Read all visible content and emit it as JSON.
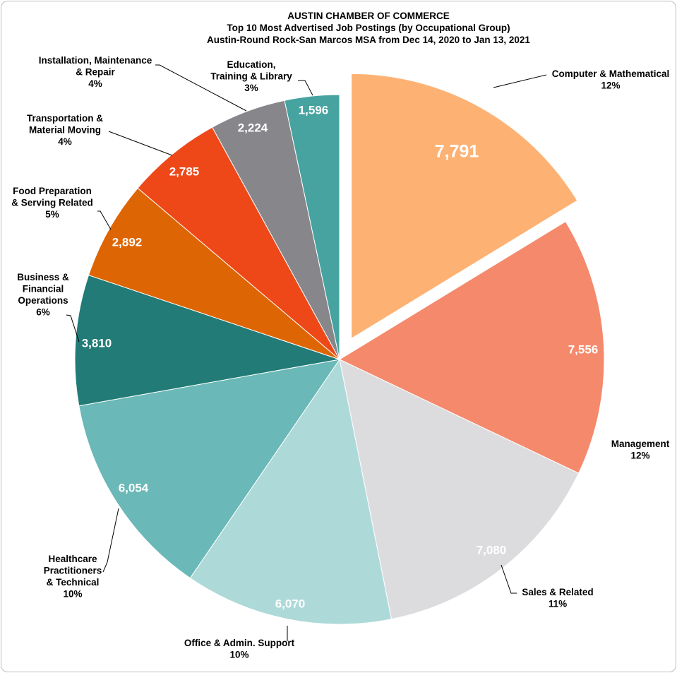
{
  "chart_data": {
    "type": "pie",
    "title": "AUSTIN CHAMBER OF COMMERCE",
    "subtitle": "Top 10 Most Advertised Job Postings (by Occupational Group)",
    "subtitle2": "Austin-Round Rock-San Marcos MSA from Dec 14, 2020 to Jan 13, 2021",
    "exploded_slice": "Computer & Mathematical",
    "slices": [
      {
        "label": "Computer & Mathematical",
        "value": 7791,
        "value_label": "7,791",
        "percent": "12%",
        "color": "#FDB274"
      },
      {
        "label": "Management",
        "value": 7556,
        "value_label": "7,556",
        "percent": "12%",
        "color": "#F5896C"
      },
      {
        "label": "Sales & Related",
        "value": 7080,
        "value_label": "7,080",
        "percent": "11%",
        "color": "#DCDCDE"
      },
      {
        "label": "Office & Admin.  Support",
        "value": 6070,
        "value_label": "6,070",
        "percent": "10%",
        "color": "#ADD9D8"
      },
      {
        "label": "Healthcare Practitioners & Technical",
        "value": 6054,
        "value_label": "6,054",
        "percent": "10%",
        "color": "#6AB8B7"
      },
      {
        "label": "Business & Financial Operations",
        "value": 3810,
        "value_label": "3,810",
        "percent": "6%",
        "color": "#227B77"
      },
      {
        "label": "Food Preparation & Serving Related",
        "value": 2892,
        "value_label": "2,892",
        "percent": "5%",
        "color": "#DE6503"
      },
      {
        "label": "Transportation & Material Moving",
        "value": 2785,
        "value_label": "2,785",
        "percent": "4%",
        "color": "#EE4819"
      },
      {
        "label": "Installation, Maintenance & Repair",
        "value": 2224,
        "value_label": "2,224",
        "percent": "4%",
        "color": "#87868A"
      },
      {
        "label": "Education, Training & Library",
        "value": 1596,
        "value_label": "1,596",
        "percent": "3%",
        "color": "#46A3A0"
      }
    ],
    "category_label_lines": [
      [
        "Computer & Mathematical"
      ],
      [
        "Management"
      ],
      [
        "Sales & Related"
      ],
      [
        "Office & Admin.  Support"
      ],
      [
        "Healthcare",
        "Practitioners",
        "& Technical"
      ],
      [
        "Business &",
        "Financial",
        "Operations"
      ],
      [
        "Food Preparation",
        "& Serving Related"
      ],
      [
        "Transportation &",
        "Material Moving"
      ],
      [
        "Installation, Maintenance",
        "& Repair"
      ],
      [
        "Education,",
        "Training & Library"
      ]
    ]
  }
}
